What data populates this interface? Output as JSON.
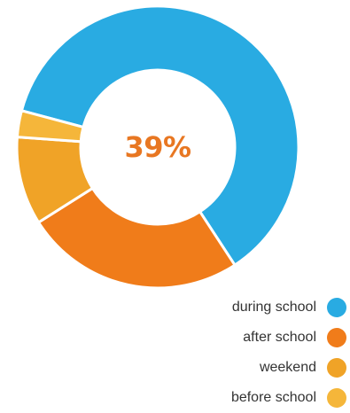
{
  "chart_data": {
    "type": "pie",
    "center_label": "39%",
    "center_label_color": "#e87722",
    "categories": [
      "during school",
      "after school",
      "weekend",
      "before school"
    ],
    "values": [
      61,
      25,
      10,
      3
    ],
    "colors": [
      "#29abe2",
      "#f07c1a",
      "#f0a327",
      "#f5b63a"
    ],
    "legend_placement": "bottom-right"
  }
}
